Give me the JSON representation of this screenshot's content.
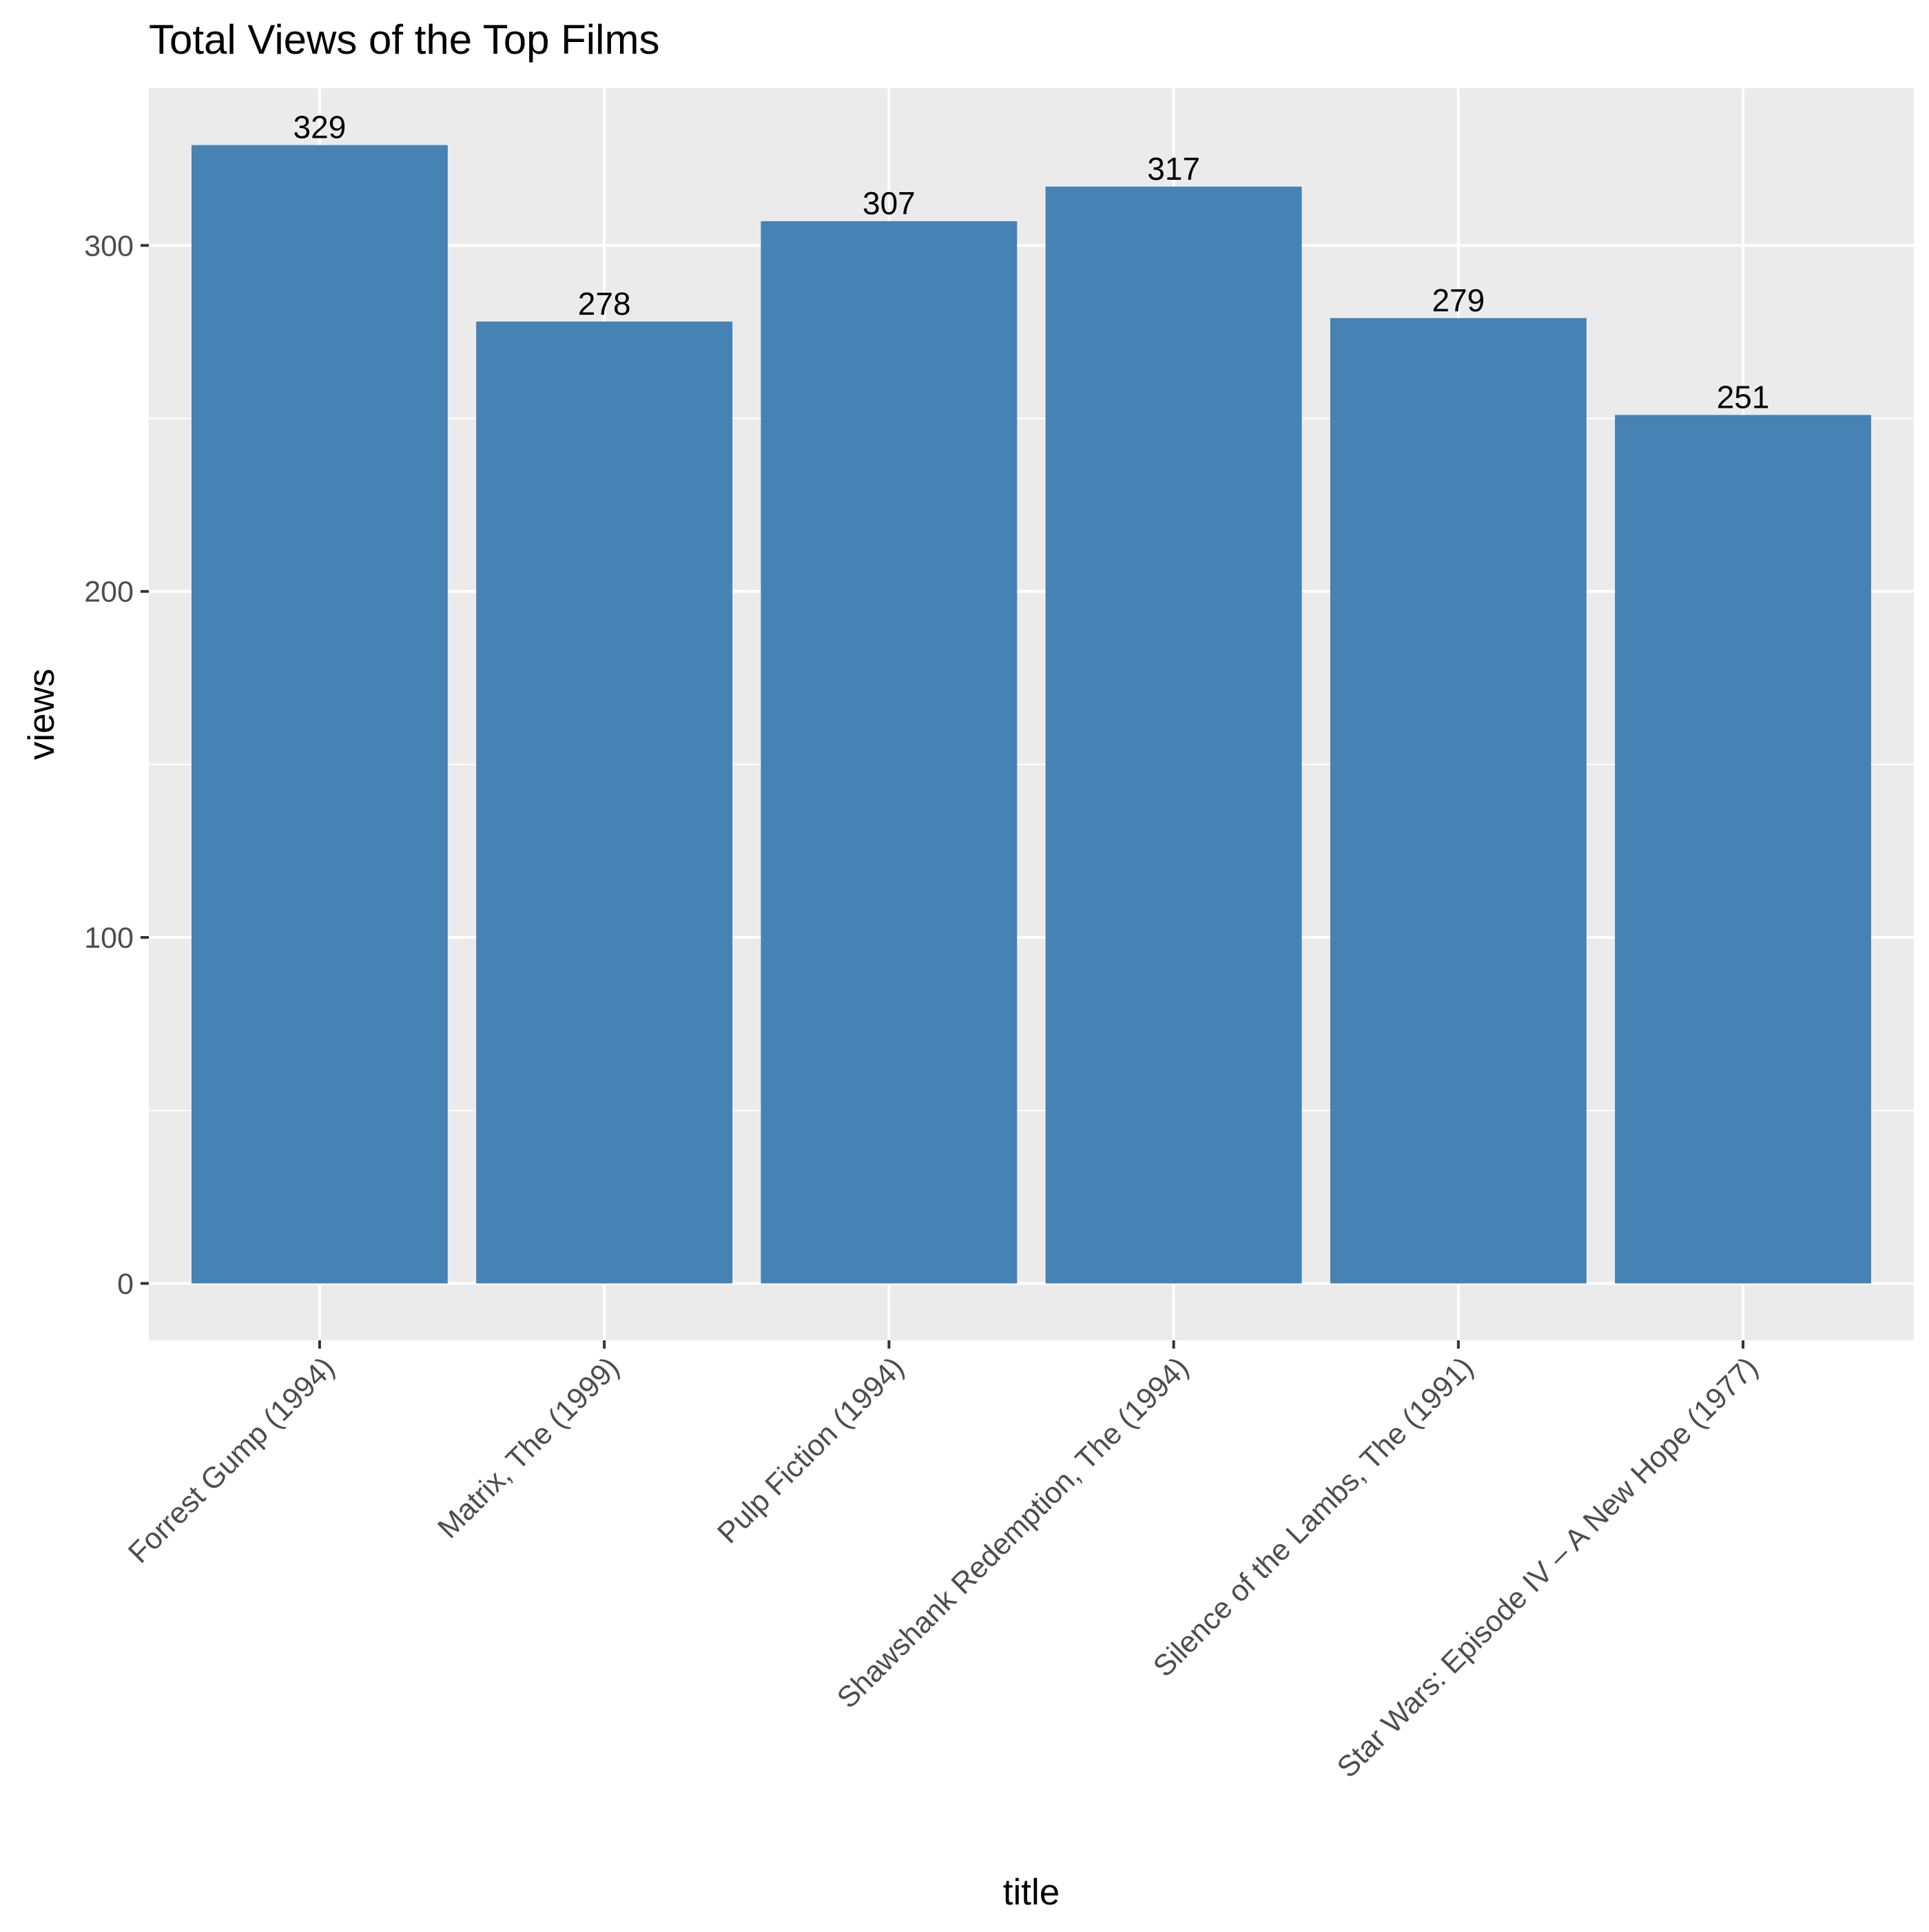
{
  "chart_data": {
    "type": "bar",
    "title": "Total Views of the Top Films",
    "xlabel": "title",
    "ylabel": "views",
    "categories": [
      "Forrest Gump (1994)",
      "Matrix, The (1999)",
      "Pulp Fiction (1994)",
      "Shawshank Redemption, The (1994)",
      "Silence of the Lambs, The (1991)",
      "Star Wars: Episode IV – A New Hope (1977)"
    ],
    "values": [
      329,
      278,
      307,
      317,
      279,
      251
    ],
    "data_labels": [
      "329",
      "278",
      "307",
      "317",
      "279",
      "251"
    ],
    "ylim": [
      -16.45,
      345.45
    ],
    "y_ticks": [
      0,
      100,
      200,
      300
    ],
    "y_tick_labels": [
      "0",
      "100",
      "200",
      "300"
    ],
    "grid": true,
    "legend": "none",
    "colors": {
      "bar": "#4682b4",
      "panel_background": "#ebebeb",
      "grid_major": "#ffffff",
      "grid_minor": "#f5f5f5",
      "tick_mark": "#333333"
    }
  }
}
